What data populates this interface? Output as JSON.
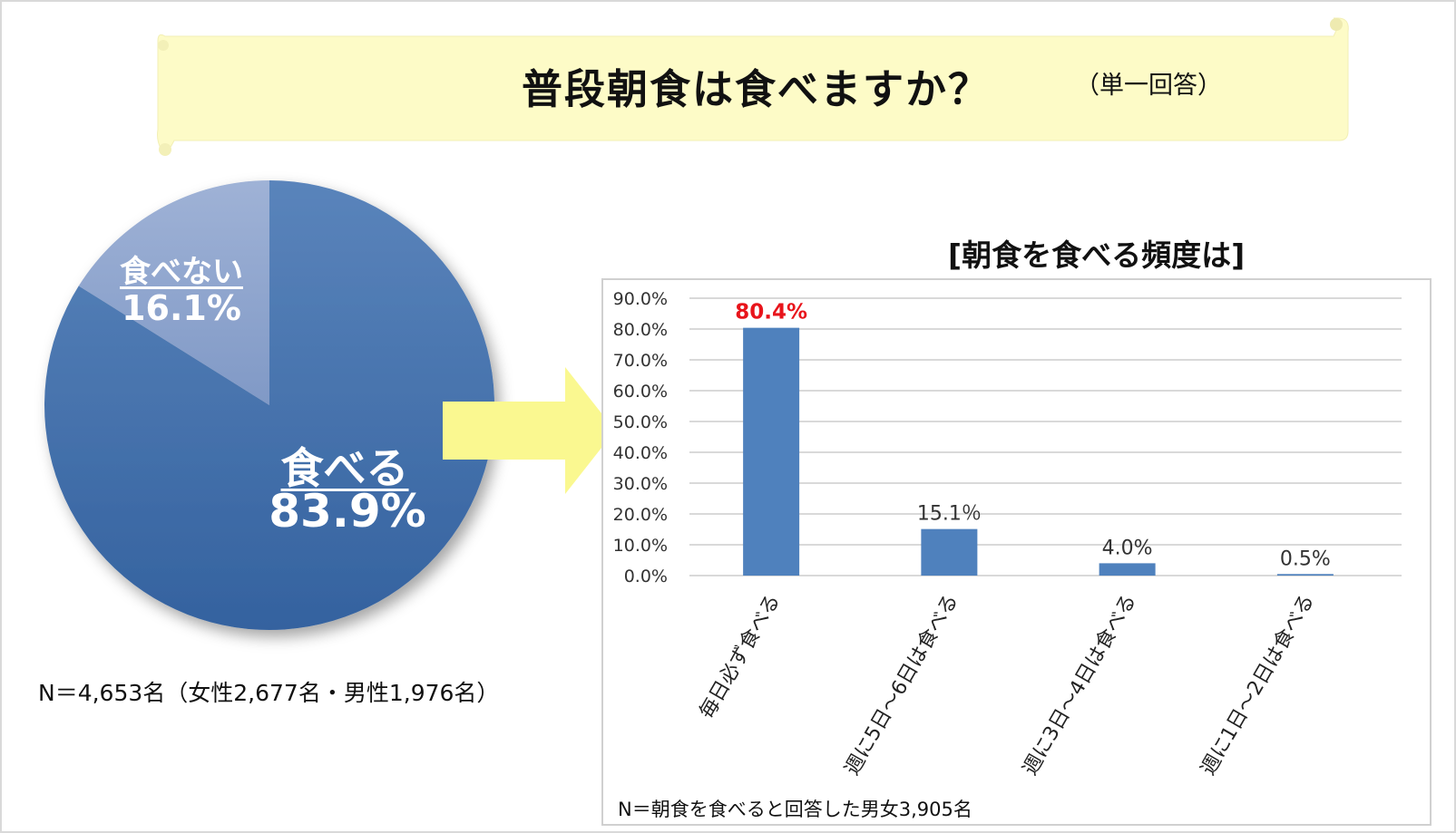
{
  "title": {
    "main": "普段朝食は食べますか？",
    "note": "（単一回答）"
  },
  "colors": {
    "scroll_fill": "#fdfbc7",
    "pie_main": "#3a6aa8",
    "pie_minor": "#8ea5cd",
    "bar_fill": "#4f81bd",
    "highlight_label": "#e8141b",
    "arrow_fill": "#faf890"
  },
  "pie": {
    "slices": [
      {
        "label": "食べる",
        "value": 83.9,
        "value_text": "83.9%"
      },
      {
        "label": "食べない",
        "value": 16.1,
        "value_text": "16.1%"
      }
    ],
    "note": "N＝4,653名（女性2,677名・男性1,976名）"
  },
  "arrow_icon": "right-arrow-icon",
  "chart_data": {
    "type": "bar",
    "title": "[朝食を食べる頻度は]",
    "categories": [
      "毎日必ず食べる",
      "週に5日～6日は食べる",
      "週に3日～4日は食べる",
      "週に1日～2日は食べる"
    ],
    "values": [
      80.4,
      15.1,
      4.0,
      0.5
    ],
    "data_labels": [
      "80.4%",
      "15.1％",
      "4.0%",
      "0.5%"
    ],
    "yticks": [
      "0.0%",
      "10.0%",
      "20.0%",
      "30.0%",
      "40.0%",
      "50.0%",
      "60.0%",
      "70.0%",
      "80.0%",
      "90.0%"
    ],
    "ylim": [
      0,
      90
    ],
    "grid": true,
    "note": "N＝朝食を食べると回答した男女3,905名"
  }
}
